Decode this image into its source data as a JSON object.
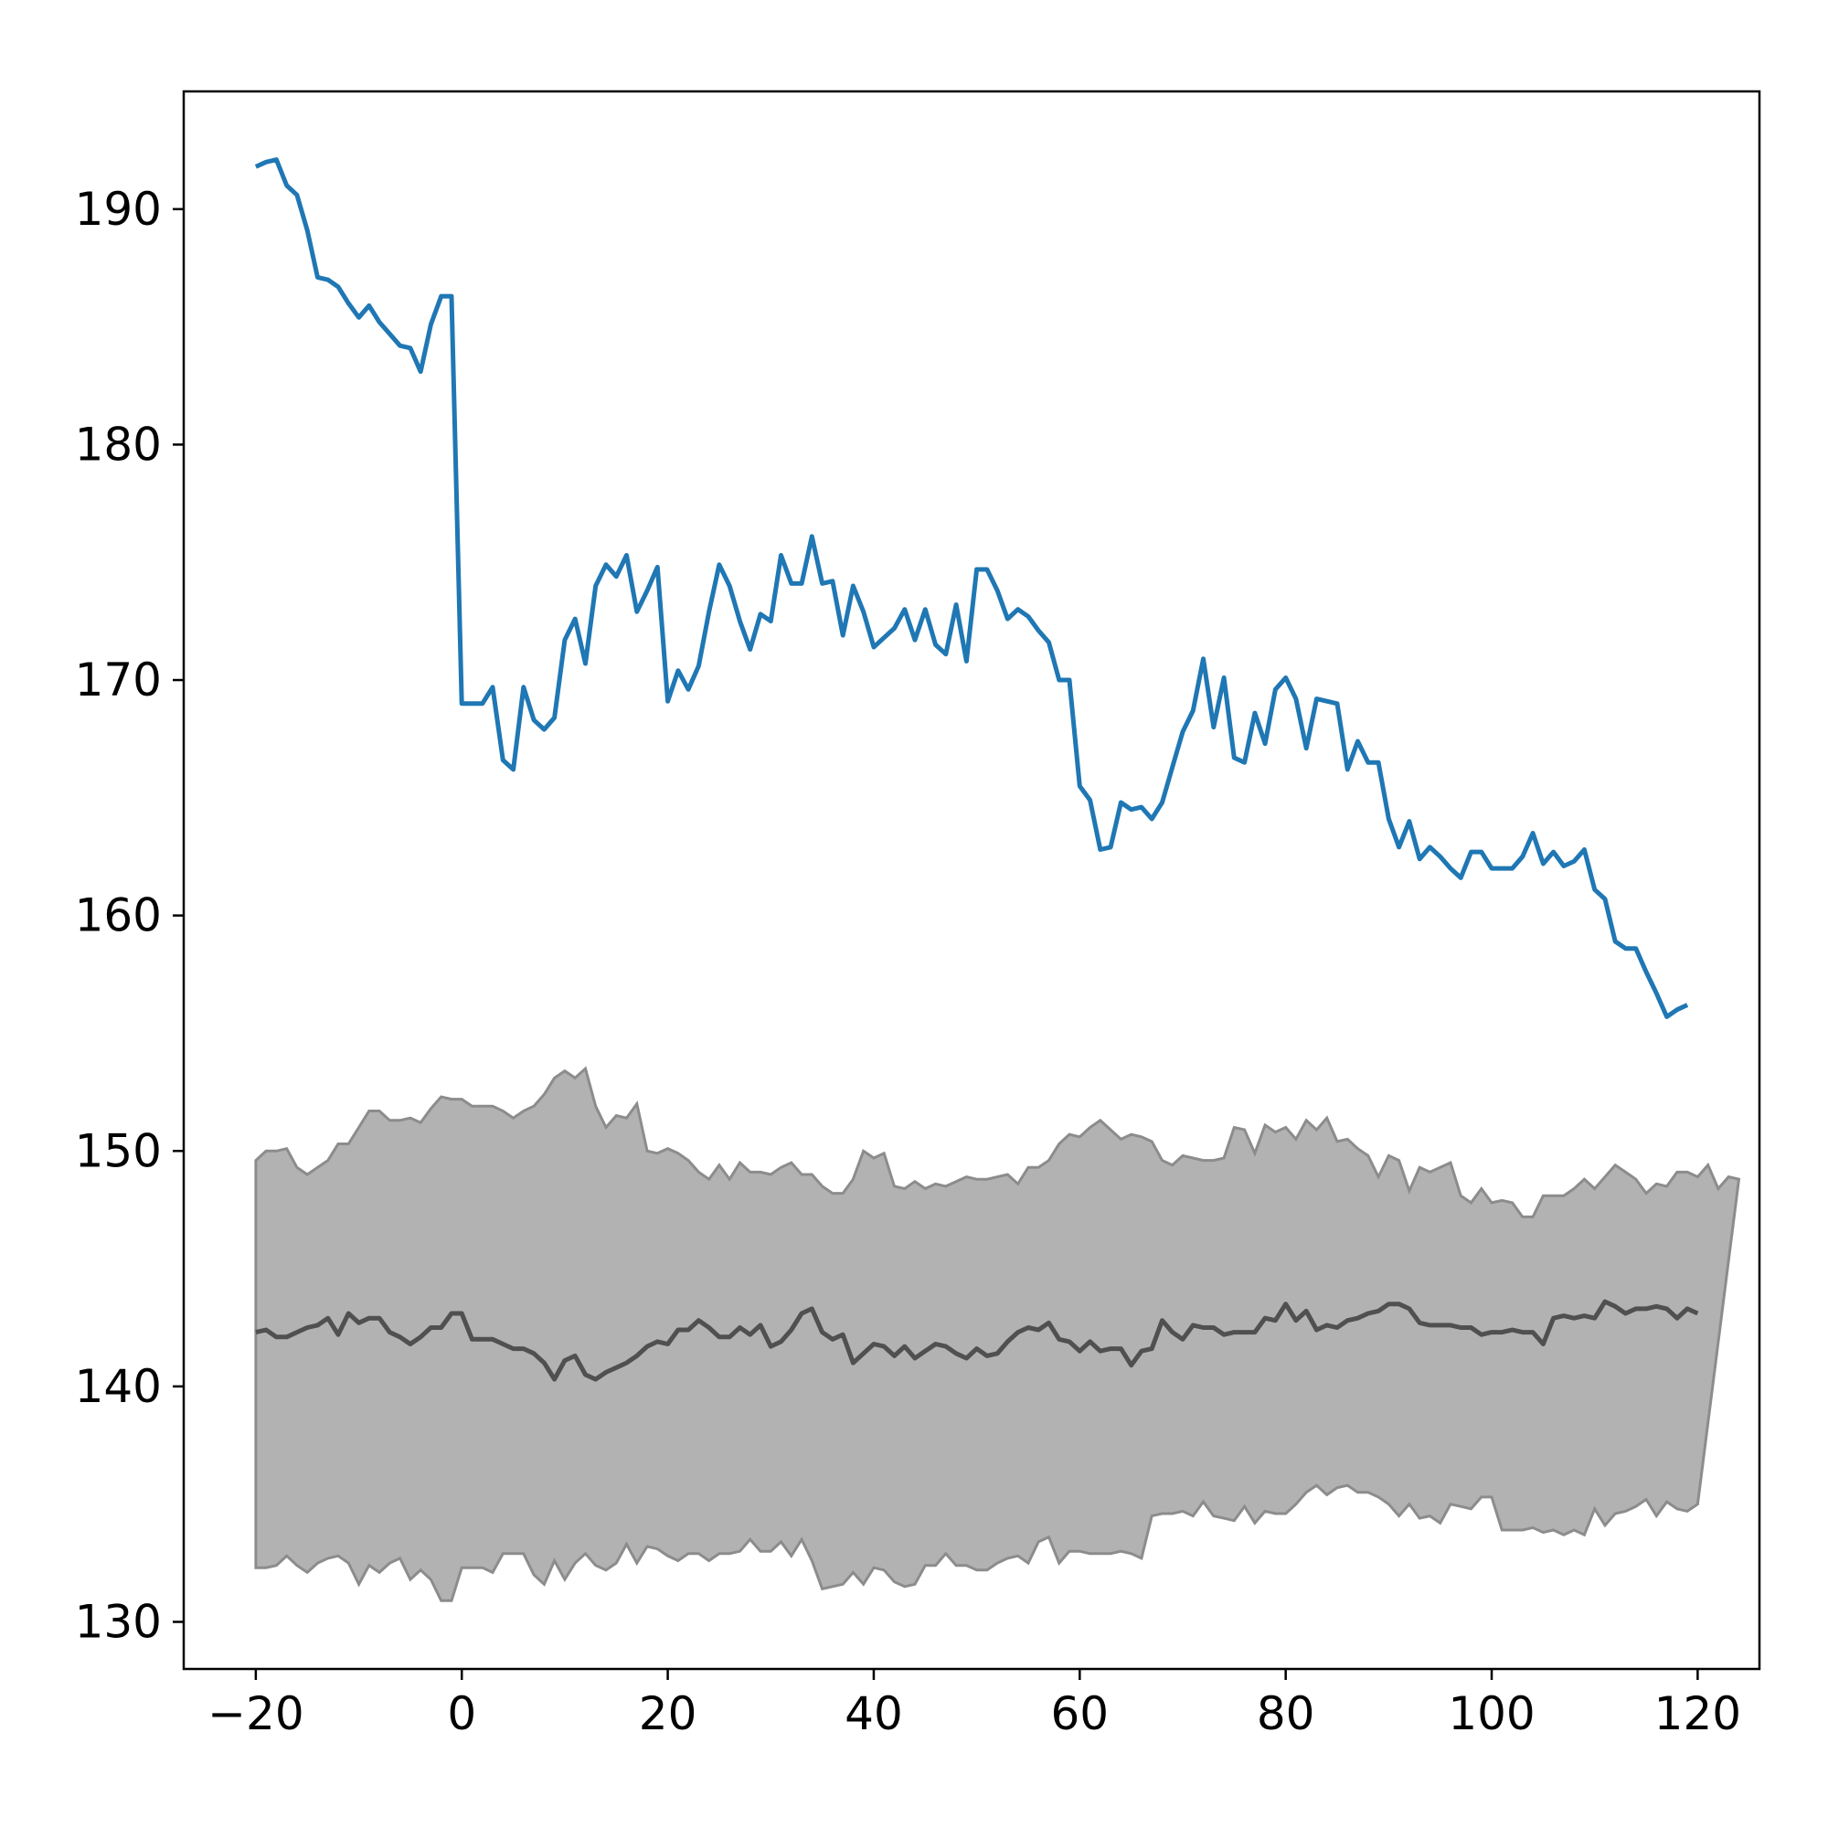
{
  "chart_data": {
    "type": "line",
    "title": "",
    "xlabel": "",
    "ylabel": "",
    "xlim": [
      -27,
      126
    ],
    "ylim": [
      128,
      195
    ],
    "xticks": [
      -20,
      0,
      20,
      40,
      60,
      80,
      100,
      120
    ],
    "xtick_labels": [
      "−20",
      "0",
      "20",
      "40",
      "60",
      "80",
      "100",
      "120"
    ],
    "yticks": [
      130,
      140,
      150,
      160,
      170,
      180,
      190
    ],
    "ytick_labels": [
      "130",
      "140",
      "150",
      "160",
      "170",
      "180",
      "190"
    ],
    "grid": false,
    "colors": {
      "observed": "#1f77b4",
      "band_fill": "#b2b2b2",
      "band_edge": "#8c8c8c",
      "median": "#505050"
    },
    "series": [
      {
        "role": "observed",
        "x_start": -20,
        "values": [
          191.8,
          192,
          192.1,
          191,
          190.6,
          189.1,
          187.1,
          187,
          186.7,
          186,
          185.4,
          185.9,
          185.2,
          184.7,
          184.2,
          184.1,
          183.1,
          185.1,
          186.3,
          186.3,
          169,
          169,
          169,
          169.7,
          166.6,
          166.2,
          169.7,
          168.3,
          167.9,
          168.4,
          171.7,
          172.6,
          170.7,
          174,
          174.9,
          174.4,
          175.3,
          172.9,
          173.8,
          174.8,
          169.1,
          170.4,
          169.6,
          170.6,
          172.9,
          174.9,
          174,
          172.5,
          171.3,
          172.8,
          172.5,
          175.3,
          174.1,
          174.1,
          176.1,
          174.1,
          174.2,
          171.9,
          174,
          172.9,
          171.4,
          171.8,
          172.2,
          173,
          171.7,
          173,
          171.5,
          171.1,
          173.2,
          170.8,
          174.7,
          174.7,
          173.8,
          172.6,
          173,
          172.7,
          172.1,
          171.6,
          170,
          170,
          165.5,
          164.9,
          162.8,
          162.9,
          164.8,
          164.5,
          164.6,
          164.1,
          164.8,
          166.3,
          167.8,
          168.7,
          170.9,
          168,
          170.1,
          166.7,
          166.5,
          168.6,
          167.3,
          169.6,
          170.1,
          169.2,
          167.1,
          169.2,
          169.1,
          169,
          166.2,
          167.4,
          166.5,
          166.5,
          164.1,
          162.9,
          164,
          162.4,
          162.9,
          162.5,
          162,
          161.6,
          162.7,
          162.7,
          162,
          162,
          162,
          162.5,
          163.5,
          162.2,
          162.7,
          162.1,
          162.3,
          162.8,
          161.1,
          160.7,
          158.9,
          158.6,
          158.6,
          157.6,
          156.7,
          155.7,
          156,
          156.2
        ]
      },
      {
        "role": "band_upper",
        "x_start": -20,
        "values": [
          149.6,
          150,
          150,
          150.1,
          149.3,
          149,
          149.3,
          149.6,
          150.3,
          150.3,
          151,
          151.7,
          151.7,
          151.3,
          151.3,
          151.4,
          151.2,
          151.8,
          152.3,
          152.2,
          152.2,
          151.9,
          151.9,
          151.9,
          151.7,
          151.4,
          151.7,
          151.9,
          152.4,
          153.1,
          153.4,
          153.1,
          153.5,
          151.9,
          151,
          151.5,
          151.4,
          152,
          150,
          149.9,
          150.1,
          149.9,
          149.6,
          149.1,
          148.8,
          149.4,
          148.8,
          149.5,
          149.1,
          149.1,
          149,
          149.3,
          149.5,
          149,
          149,
          148.5,
          148.2,
          148.2,
          148.8,
          150,
          149.7,
          149.9,
          148.5,
          148.4,
          148.7,
          148.4,
          148.6,
          148.5,
          148.7,
          148.9,
          148.8,
          148.8,
          148.9,
          149,
          148.6,
          149.3,
          149.3,
          149.6,
          150.3,
          150.7,
          150.6,
          151,
          151.3,
          150.9,
          150.5,
          150.7,
          150.6,
          150.4,
          149.6,
          149.4,
          149.8,
          149.7,
          149.6,
          149.6,
          149.7,
          151,
          150.9,
          149.9,
          151.1,
          150.8,
          151,
          150.5,
          151.3,
          150.9,
          151.4,
          150.4,
          150.5,
          150.1,
          149.8,
          148.9,
          149.8,
          149.6,
          148.3,
          149.3,
          149.1,
          149.3,
          149.5,
          148.1,
          147.8,
          148.4,
          147.8,
          147.9,
          147.8,
          147.2,
          147.2,
          148.1,
          148.1,
          148.1,
          148.4,
          148.8,
          148.4,
          148.9,
          149.4,
          149.1,
          148.8,
          148.2,
          148.6,
          148.5,
          149.1,
          149.1,
          148.9,
          149.4,
          148.4,
          148.9,
          148.8
        ]
      },
      {
        "role": "band_lower",
        "x_start": -20,
        "values": [
          132.3,
          132.3,
          132.4,
          132.8,
          132.4,
          132.1,
          132.5,
          132.7,
          132.8,
          132.5,
          131.6,
          132.4,
          132.1,
          132.5,
          132.7,
          131.8,
          132.2,
          131.8,
          130.9,
          130.9,
          132.3,
          132.3,
          132.3,
          132.1,
          132.9,
          132.9,
          132.9,
          132,
          131.6,
          132.6,
          131.8,
          132.5,
          132.9,
          132.4,
          132.2,
          132.5,
          133.3,
          132.5,
          133.2,
          133.1,
          132.8,
          132.6,
          132.9,
          132.9,
          132.6,
          132.9,
          132.9,
          133,
          133.5,
          133,
          133,
          133.4,
          132.8,
          133.5,
          132.6,
          131.4,
          131.5,
          131.6,
          132.1,
          131.6,
          132.3,
          132.2,
          131.7,
          131.5,
          131.6,
          132.4,
          132.4,
          132.9,
          132.4,
          132.4,
          132.2,
          132.2,
          132.5,
          132.7,
          132.8,
          132.5,
          133.4,
          133.6,
          132.5,
          133,
          133,
          132.9,
          132.9,
          132.9,
          133,
          132.9,
          132.7,
          134.5,
          134.6,
          134.6,
          134.7,
          134.5,
          135.1,
          134.5,
          134.4,
          134.3,
          134.9,
          134.2,
          134.7,
          134.6,
          134.6,
          135,
          135.5,
          135.8,
          135.4,
          135.7,
          135.8,
          135.5,
          135.5,
          135.3,
          135,
          134.5,
          135,
          134.4,
          134.5,
          134.2,
          135,
          134.9,
          134.8,
          135.3,
          135.3,
          133.9,
          133.9,
          133.9,
          134,
          133.8,
          133.9,
          133.7,
          133.9,
          133.7,
          134.8,
          134.1,
          134.6,
          134.7,
          134.9,
          135.2,
          134.5,
          135.1,
          134.8,
          134.7,
          135
        ]
      },
      {
        "role": "median",
        "x_start": -20,
        "values": [
          142.3,
          142.4,
          142.1,
          142.1,
          142.3,
          142.5,
          142.6,
          142.9,
          142.2,
          143.1,
          142.7,
          142.9,
          142.9,
          142.3,
          142.1,
          141.8,
          142.1,
          142.5,
          142.5,
          143.1,
          143.1,
          142,
          142,
          142,
          141.8,
          141.6,
          141.6,
          141.4,
          141,
          140.3,
          141.1,
          141.3,
          140.5,
          140.3,
          140.6,
          140.8,
          141,
          141.3,
          141.7,
          141.9,
          141.8,
          142.4,
          142.4,
          142.8,
          142.5,
          142.1,
          142.1,
          142.5,
          142.2,
          142.6,
          141.7,
          141.9,
          142.4,
          143.1,
          143.3,
          142.3,
          142,
          142.2,
          141,
          141.4,
          141.8,
          141.7,
          141.3,
          141.7,
          141.2,
          141.5,
          141.8,
          141.7,
          141.4,
          141.2,
          141.6,
          141.3,
          141.4,
          141.9,
          142.3,
          142.5,
          142.4,
          142.7,
          142,
          141.9,
          141.5,
          141.9,
          141.5,
          141.6,
          141.6,
          140.9,
          141.5,
          141.6,
          142.8,
          142.3,
          142,
          142.6,
          142.5,
          142.5,
          142.2,
          142.3,
          142.3,
          142.3,
          142.9,
          142.8,
          143.5,
          142.8,
          143.2,
          142.4,
          142.6,
          142.5,
          142.8,
          142.9,
          143.1,
          143.2,
          143.5,
          143.5,
          143.3,
          142.7,
          142.6,
          142.6,
          142.6,
          142.5,
          142.5,
          142.2,
          142.3,
          142.3,
          142.4,
          142.3,
          142.3,
          141.8,
          142.9,
          143,
          142.9,
          143,
          142.9,
          143.6,
          143.4,
          143.1,
          143.3,
          143.3,
          143.4,
          143.3,
          142.9,
          143.3,
          143.1
        ]
      }
    ]
  }
}
